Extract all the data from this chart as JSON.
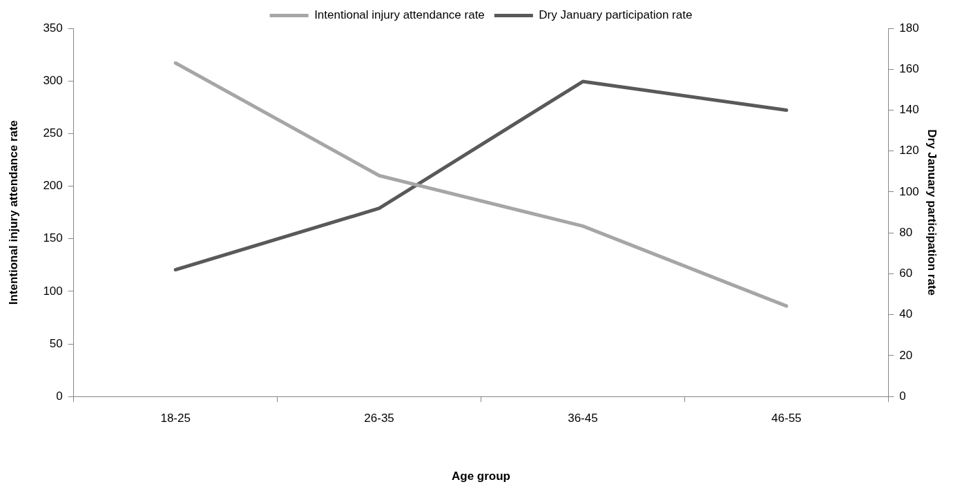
{
  "chart_data": {
    "type": "line",
    "xlabel": "Age group",
    "ylabel": "Intentional injury attendance rate",
    "y2label": "Dry January participation rate",
    "categories": [
      "18-25",
      "26-35",
      "36-45",
      "46-55"
    ],
    "series": [
      {
        "name": "Intentional injury attendance rate",
        "color": "#a6a6a6",
        "values": [
          317,
          210,
          162,
          86
        ]
      },
      {
        "name": "Dry January participation rate",
        "color": "#595959",
        "values": [
          62,
          92,
          154,
          140
        ],
        "axis": "y2"
      }
    ],
    "ylim": [
      0,
      350
    ],
    "yticks": [
      0,
      50,
      100,
      150,
      200,
      250,
      300,
      350
    ],
    "y2lim": [
      0,
      180
    ],
    "y2ticks": [
      0,
      20,
      40,
      60,
      80,
      100,
      120,
      140,
      160,
      180
    ],
    "grid": false,
    "legend": "top",
    "marker": "none",
    "line_style": "solid"
  }
}
